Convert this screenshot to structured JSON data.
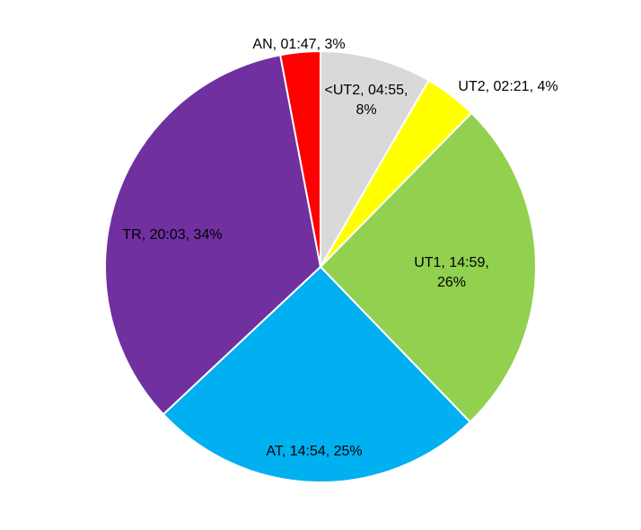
{
  "chart_data": {
    "type": "pie",
    "start": "top",
    "direction": "clockwise",
    "slices": [
      {
        "name": "<UT2",
        "time": "04:55",
        "percent": "8%",
        "value": 8.4,
        "color": "#D9D9D9",
        "label_lines": [
          "<UT2, 04:55,",
          "8%"
        ]
      },
      {
        "name": "UT2",
        "time": "02:21",
        "percent": "4%",
        "value": 4.0,
        "color": "#FFFF00",
        "label_lines": [
          "UT2, 02:21, 4%"
        ]
      },
      {
        "name": "UT1",
        "time": "14:59",
        "percent": "26%",
        "value": 25.5,
        "color": "#92D050",
        "label_lines": [
          "UT1, 14:59,",
          "26%"
        ]
      },
      {
        "name": "AT",
        "time": "14:54",
        "percent": "25%",
        "value": 25.3,
        "color": "#00B0F0",
        "label_lines": [
          "AT, 14:54, 25%"
        ]
      },
      {
        "name": "TR",
        "time": "20:03",
        "percent": "34%",
        "value": 34.1,
        "color": "#7030A0",
        "label_lines": [
          "TR, 20:03, 34%"
        ]
      },
      {
        "name": "AN",
        "time": "01:47",
        "percent": "3%",
        "value": 3.0,
        "color": "#FF0000",
        "label_lines": [
          "AN, 01:47, 3%"
        ]
      }
    ]
  }
}
